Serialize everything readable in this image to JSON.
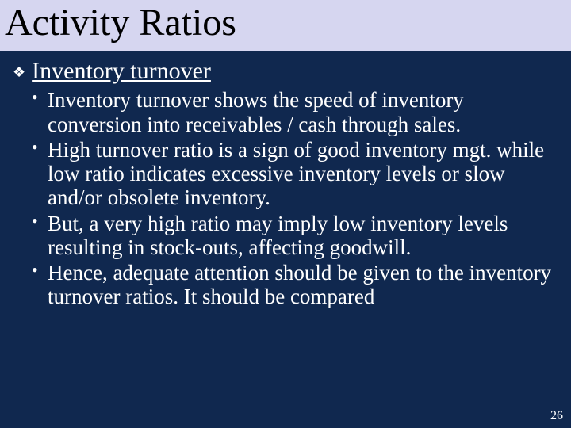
{
  "colors": {
    "background": "#10284f",
    "title_band_bg": "#d6d6f0",
    "title_text": "#000000",
    "body_text": "#ffffff",
    "bullet_color": "#ffffff"
  },
  "typography": {
    "title_fontsize_pt": 48,
    "heading_fontsize_pt": 30,
    "bullet_fontsize_pt": 27,
    "page_num_fontsize_pt": 16,
    "font_family": "Times New Roman"
  },
  "title": "Activity Ratios",
  "section": {
    "heading": "Inventory turnover",
    "bullets": [
      "Inventory turnover shows the speed of inventory conversion into receivables / cash through sales.",
      "High turnover ratio is a sign of good inventory mgt. while low ratio indicates excessive inventory levels or slow and/or obsolete inventory.",
      "But, a very high ratio may imply low inventory levels resulting in stock-outs, affecting goodwill.",
      "Hence, adequate attention should be given to the inventory turnover ratios. It should be compared"
    ]
  },
  "page_number": "26"
}
